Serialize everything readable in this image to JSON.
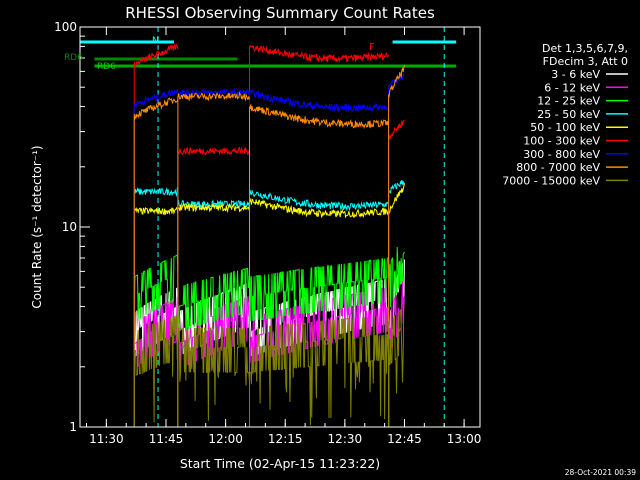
{
  "chart_data": {
    "type": "line",
    "title": "RHESSI Observing Summary Count Rates",
    "xlabel": "Start Time (02-Apr-15 11:23:22)",
    "ylabel": "Count Rate (s⁻¹ detector⁻¹)",
    "y_scale": "log",
    "ylim": [
      1,
      100
    ],
    "xlim": [
      "11:23:22",
      "13:04:00"
    ],
    "x_ticks": [
      "11:30",
      "11:45",
      "12:00",
      "12:15",
      "12:30",
      "12:45",
      "13:00"
    ],
    "y_ticks": [
      "1",
      "10",
      "100"
    ],
    "grid": false,
    "legend_position": "right",
    "legend_header": [
      "Det 1,3,5,6,7,9,",
      "FDecim 3, Att 0"
    ],
    "annotations": {
      "flag_N": "N",
      "flag_F": "F",
      "rd6_top": "RD6",
      "rd6_bottom": "RD6",
      "timestamp": "28-Oct-2021 00:39"
    },
    "dashed_markers": [
      "11:43",
      "12:55"
    ],
    "gaps": [
      [
        "11:23:22",
        "11:37"
      ],
      [
        "12:43",
        "13:04"
      ]
    ],
    "segments": [
      [
        "11:37",
        "11:48"
      ],
      [
        "11:48",
        "12:06"
      ],
      [
        "12:06",
        "12:41"
      ],
      [
        "12:41",
        "12:45"
      ]
    ],
    "series": [
      {
        "name": "3 - 6 keV",
        "color": "#ffffff",
        "levels": [
          [
            3,
            4
          ],
          [
            3,
            4.2
          ],
          [
            3,
            4.4
          ],
          [
            3.6,
            5.5
          ]
        ]
      },
      {
        "name": "6 - 12 keV",
        "color": "#ff00ff",
        "levels": [
          [
            2.6,
            3.6
          ],
          [
            2.6,
            3.6
          ],
          [
            2.8,
            4.0
          ],
          [
            3.0,
            4.5
          ]
        ]
      },
      {
        "name": "12 - 25 keV",
        "color": "#00ff00",
        "levels": [
          [
            4.5,
            5.8
          ],
          [
            4.0,
            5.0
          ],
          [
            4.5,
            5.6
          ],
          [
            5.0,
            7.5
          ]
        ]
      },
      {
        "name": "25 - 50 keV",
        "color": "#00ffff",
        "levels": [
          [
            15,
            15
          ],
          [
            13,
            13
          ],
          [
            15,
            13
          ],
          [
            15,
            17
          ]
        ]
      },
      {
        "name": "50 - 100 keV",
        "color": "#ffff00",
        "levels": [
          [
            12,
            12
          ],
          [
            12.5,
            12.5
          ],
          [
            13.5,
            12
          ],
          [
            12,
            16
          ]
        ]
      },
      {
        "name": "100 - 300 keV",
        "color": "#ff0000",
        "levels": [
          [
            65,
            80
          ],
          [
            24,
            24
          ],
          [
            80,
            72
          ],
          [
            28,
            34
          ]
        ]
      },
      {
        "name": "300 - 800 keV",
        "color": "#0000ff",
        "levels": [
          [
            41,
            48
          ],
          [
            47,
            47
          ],
          [
            47,
            40
          ],
          [
            50,
            58
          ]
        ]
      },
      {
        "name": "800 - 7000 keV",
        "color": "#ff8c00",
        "levels": [
          [
            36,
            44
          ],
          [
            45,
            45
          ],
          [
            40,
            33
          ],
          [
            46,
            62
          ]
        ]
      },
      {
        "name": "7000 - 15000 keV",
        "color": "#808000",
        "levels": [
          [
            2.4,
            2.9
          ],
          [
            2.5,
            2.5
          ],
          [
            2.5,
            2.9
          ],
          [
            2.7,
            3.2
          ]
        ]
      }
    ]
  }
}
